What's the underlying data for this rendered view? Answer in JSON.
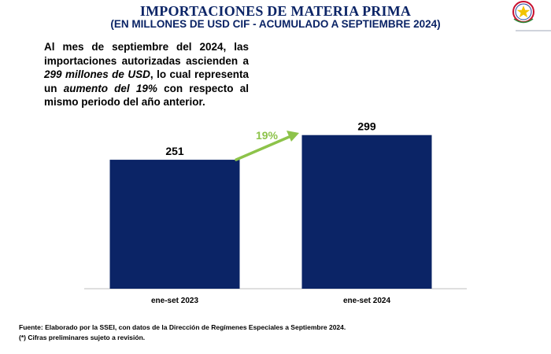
{
  "header": {
    "title": "IMPORTACIONES DE MATERIA PRIMA",
    "subtitle": "(EN MILLONES DE USD CIF - ACUMULADO A SEPTIEMBRE 2024)"
  },
  "summary": {
    "p1": "Al mes de septiembre del 2024, las importaciones autorizadas ascienden a ",
    "em1": "299 millones de USD",
    "p2": ", lo cual representa un ",
    "em2": "aumento del 19%",
    "p3": " con respecto al mismo periodo del año anterior."
  },
  "chart_data": {
    "type": "bar",
    "categories": [
      "ene-set 2023",
      "ene-set 2024"
    ],
    "values": [
      251,
      299
    ],
    "data_labels": [
      "251",
      "299"
    ],
    "growth_annotation": "19%",
    "ylim": [
      0,
      320
    ],
    "grid": false,
    "colors": {
      "bar": "#0b2466",
      "arrow": "#8dc34a",
      "axis": "#bfbfbf"
    }
  },
  "footer": {
    "source_label": "Fuente:",
    "source_text": " Elaborado por la SSEI, con datos de la Dirección de Regímenes Especiales a Septiembre 2024.",
    "note": "(*) Cifras preliminares sujeto a revisión."
  },
  "colors": {
    "title": "#0b2466",
    "seal_red": "#c8102e",
    "seal_star": "#f2c400"
  }
}
